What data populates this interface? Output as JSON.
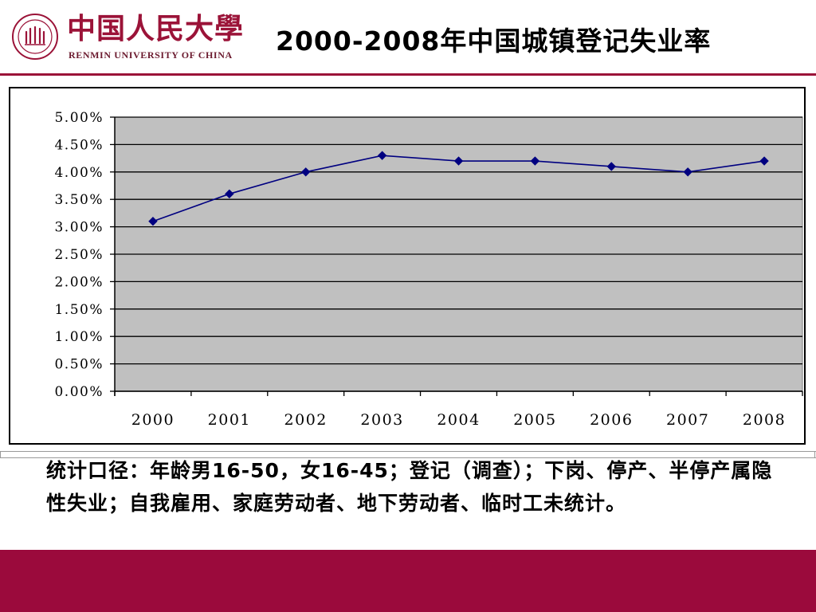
{
  "header": {
    "logo_cn": "中国人民大學",
    "logo_en": "RENMIN UNIVERSITY OF CHINA",
    "title": "2000-2008年中国城镇登记失业率"
  },
  "colors": {
    "brand": "#9b1338",
    "footer": "#9b0a3c",
    "plot_bg": "#c0c0c0",
    "series": "#000080"
  },
  "chart_data": {
    "type": "line",
    "categories": [
      "2000",
      "2001",
      "2002",
      "2003",
      "2004",
      "2005",
      "2006",
      "2007",
      "2008"
    ],
    "series": [
      {
        "values": [
          3.1,
          3.6,
          4.0,
          4.3,
          4.2,
          4.2,
          4.1,
          4.0,
          4.2
        ]
      }
    ],
    "yticks": [
      "0.00%",
      "0.50%",
      "1.00%",
      "1.50%",
      "2.00%",
      "2.50%",
      "3.00%",
      "3.50%",
      "4.00%",
      "4.50%",
      "5.00%"
    ],
    "ylim": [
      0,
      5
    ],
    "ystep": 0.5,
    "grid": true,
    "marker": "diamond"
  },
  "note": {
    "text": "统计口径：年龄男16-50，女16-45；登记（调查）；下岗、停产、半停产属隐性失业；自我雇用、家庭劳动者、地下劳动者、临时工未统计。"
  }
}
